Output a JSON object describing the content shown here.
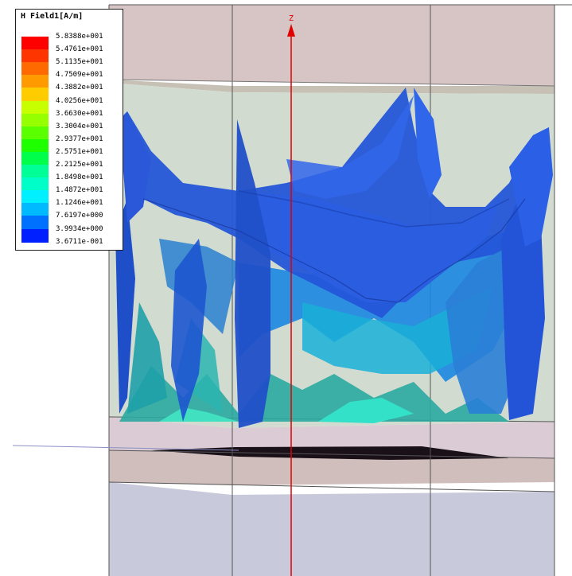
{
  "legend": {
    "title": "H Field1[A/m]",
    "values": [
      "5.8388e+001",
      "5.4761e+001",
      "5.1135e+001",
      "4.7509e+001",
      "4.3882e+001",
      "4.0256e+001",
      "3.6630e+001",
      "3.3004e+001",
      "2.9377e+001",
      "2.5751e+001",
      "2.2125e+001",
      "1.8498e+001",
      "1.4872e+001",
      "1.1246e+001",
      "7.6197e+000",
      "3.9934e+000",
      "3.6711e-001"
    ],
    "colors": [
      "#ff0000",
      "#ff3500",
      "#ff6a00",
      "#ff9a00",
      "#ffcc00",
      "#c8ff00",
      "#96ff00",
      "#5aff00",
      "#1eff00",
      "#00ff4a",
      "#00ff96",
      "#00ffc8",
      "#00f0ff",
      "#00baff",
      "#0070ff",
      "#0020ff"
    ]
  },
  "axis": {
    "label": "Z",
    "color": "#e00000"
  }
}
